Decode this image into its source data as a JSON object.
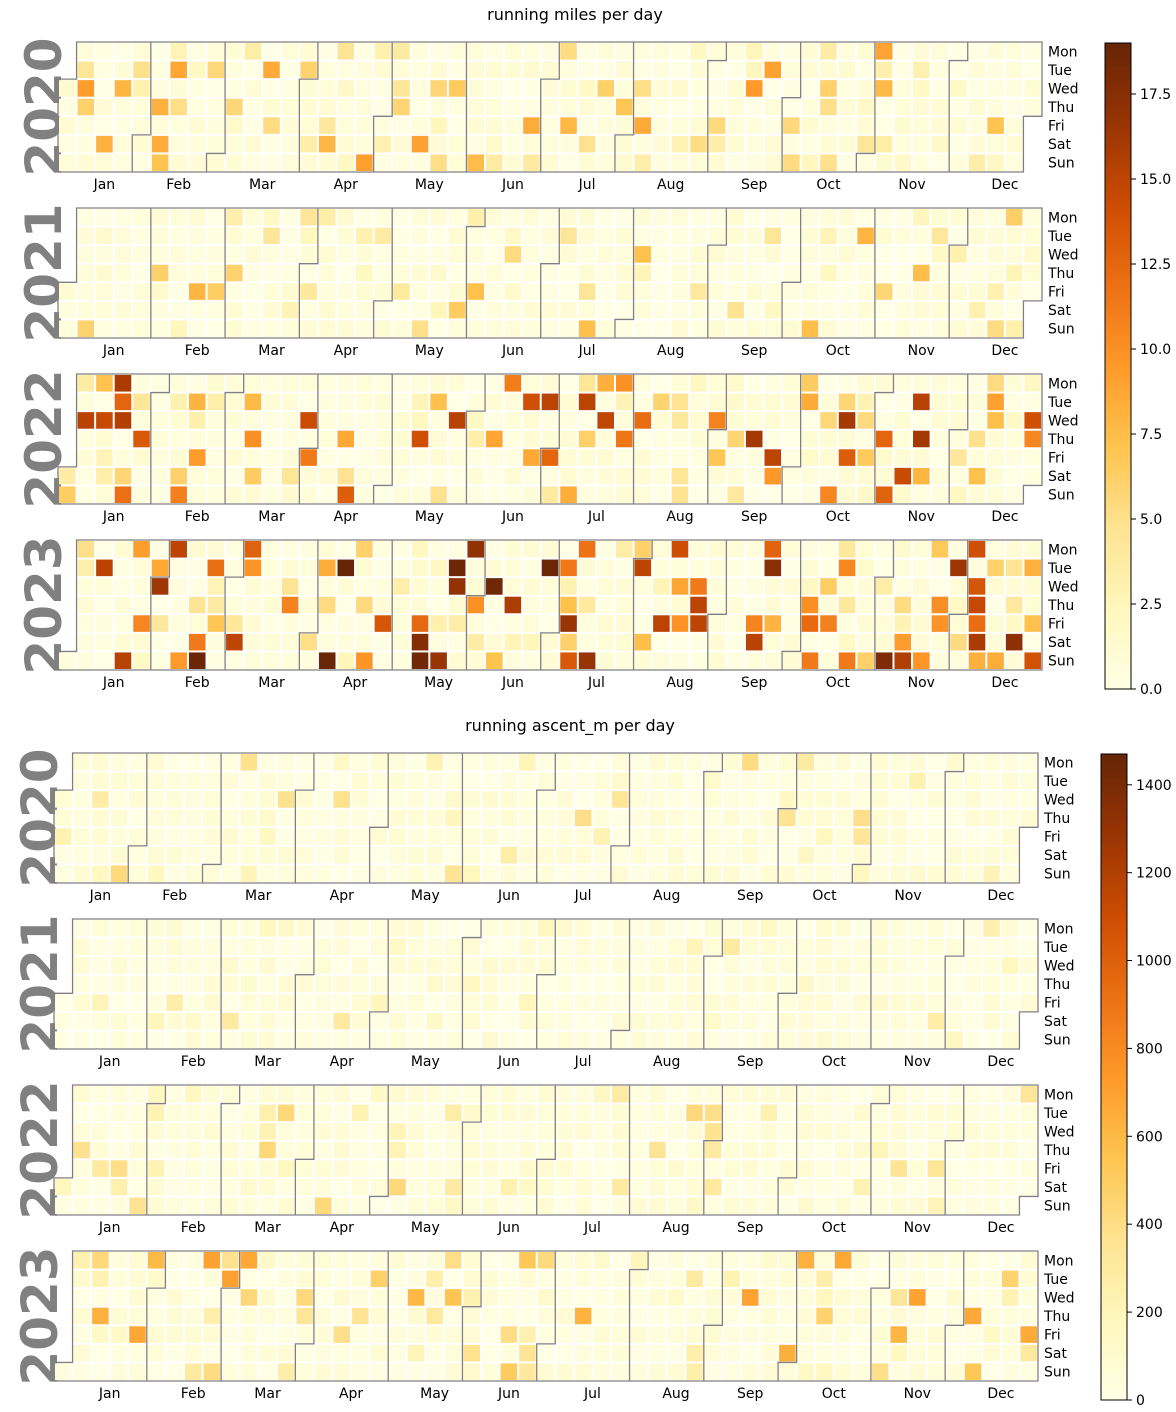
{
  "chart_data": [
    {
      "type": "heatmap",
      "subtype": "calendar",
      "title": "running miles per day",
      "years": [
        "2020",
        "2021",
        "2022",
        "2023"
      ],
      "month_labels": [
        "Jan",
        "Feb",
        "Mar",
        "Apr",
        "May",
        "Jun",
        "Jul",
        "Aug",
        "Sep",
        "Oct",
        "Nov",
        "Dec"
      ],
      "weekday_labels": [
        "Mon",
        "Tue",
        "Wed",
        "Thu",
        "Fri",
        "Sat",
        "Sun"
      ],
      "colorbar": {
        "min": 0,
        "max": 19,
        "ticks": [
          "0.0",
          "2.5",
          "5.0",
          "7.5",
          "10.0",
          "12.5",
          "15.0",
          "17.5"
        ]
      },
      "colormap": [
        "#ffffe5",
        "#fff7bc",
        "#fee391",
        "#fec44f",
        "#fe9929",
        "#ec7014",
        "#cc4c02",
        "#993404",
        "#662506"
      ],
      "intensity_by_year": {
        "2020": 0.6,
        "2021": 0.5,
        "2022": 1.0,
        "2023": 1.2
      }
    },
    {
      "type": "heatmap",
      "subtype": "calendar",
      "title": "running ascent_m per day",
      "years": [
        "2020",
        "2021",
        "2022",
        "2023"
      ],
      "month_labels": [
        "Jan",
        "Feb",
        "Mar",
        "Apr",
        "May",
        "Jun",
        "Jul",
        "Aug",
        "Sep",
        "Oct",
        "Nov",
        "Dec"
      ],
      "weekday_labels": [
        "Mon",
        "Tue",
        "Wed",
        "Thu",
        "Fri",
        "Sat",
        "Sun"
      ],
      "colorbar": {
        "min": 0,
        "max": 1470,
        "ticks": [
          "0",
          "200",
          "400",
          "600",
          "800",
          "1000",
          "1200",
          "1400"
        ]
      },
      "colormap": [
        "#ffffe5",
        "#fff7bc",
        "#fee391",
        "#fec44f",
        "#fe9929",
        "#ec7014",
        "#cc4c02",
        "#993404",
        "#662506"
      ],
      "intensity_by_year": {
        "2020": 0.35,
        "2021": 0.25,
        "2022": 0.35,
        "2023": 0.6
      }
    }
  ]
}
